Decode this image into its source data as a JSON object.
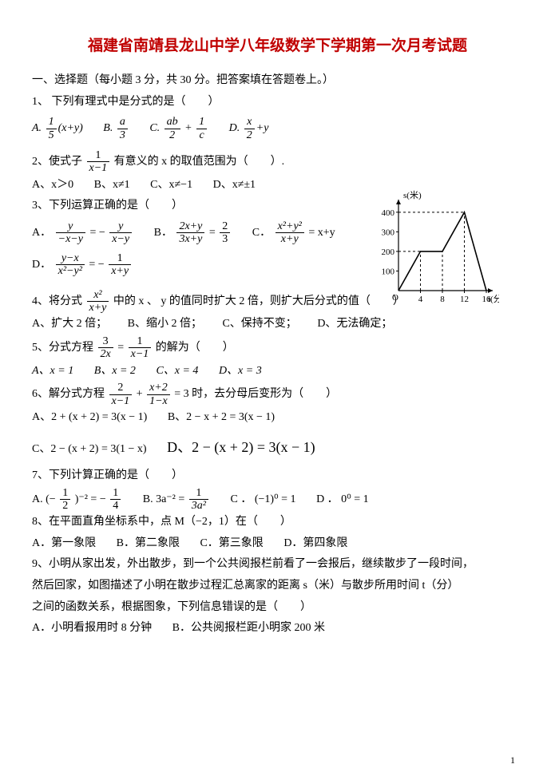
{
  "title": "福建省南靖县龙山中学八年级数学下学期第一次月考试题",
  "title_color": "#c00000",
  "section1": "一、选择题（每小题 3 分，共 30 分。把答案填在答题卷上。）",
  "q1": {
    "stem": "1、 下列有理式中是分式的是（　　）",
    "A": "A.",
    "A_num": "1",
    "A_den": "5",
    "A_tail": "(x+y)",
    "B": "B.",
    "B_num": "a",
    "B_den": "3",
    "C": "C.",
    "C_n1": "ab",
    "C_d1": "2",
    "C_plus": "+",
    "C_n2": "1",
    "C_d2": "c",
    "D": "D.",
    "D_num": "x",
    "D_den": "2",
    "D_tail": "+y"
  },
  "q2": {
    "stem_a": "2、使式子 ",
    "num": "1",
    "den": "x−1",
    "stem_b": " 有意义的 x 的取值范围为（　　）.",
    "A": "A、x＞0",
    "B": "B、x≠1",
    "C": "C、x≠−1",
    "D": "D、x≠±1"
  },
  "q3": {
    "stem": "3、下列运算正确的是（　　）",
    "A": "A．",
    "An1": "y",
    "Ad1": "−x−y",
    "Aeq": "= −",
    "An2": "y",
    "Ad2": "x−y",
    "B": "B．",
    "Bn1": "2x+y",
    "Bd1": "3x+y",
    "Beq": "=",
    "Bn2": "2",
    "Bd2": "3",
    "C": "C．",
    "Cn1": "x²+y²",
    "Cd1": "x+y",
    "Ceq": "= x+y",
    "D": "D．",
    "Dn1": "y−x",
    "Dd1": "x²−y²",
    "Deq": "= −",
    "Dn2": "1",
    "Dd2": "x+y"
  },
  "q4": {
    "stem_a": "4、将分式 ",
    "num": "x²",
    "den": "x+y",
    "stem_b": " 中的 x 、 y 的值同时扩大 2 倍，则扩大后分式的值（　　）",
    "A": "A、扩大 2 倍；",
    "B": "B、缩小 2 倍；",
    "C": "C、保持不变；",
    "D": "D、无法确定；"
  },
  "q5": {
    "stem_a": "5、分式方程 ",
    "n1": "3",
    "d1": "2x",
    "eq": "=",
    "n2": "1",
    "d2": "x−1",
    "stem_b": " 的解为（　　）",
    "A": "A、x = 1",
    "B": "B、x = 2",
    "C": "C、x = 4",
    "D": "D、x = 3"
  },
  "q6": {
    "stem_a": "6、解分式方程 ",
    "n1": "2",
    "d1": "x−1",
    "plus": "+",
    "n2": "x+2",
    "d2": "1−x",
    "stem_b": " = 3 时，去分母后变形为（　　）",
    "A": "A、2 + (x + 2) = 3(x − 1)",
    "B": "B、2 − x + 2 = 3(x − 1)",
    "C": "C、2 − (x + 2) = 3(1 − x)",
    "D": "D、2 − (x + 2) = 3(x − 1)"
  },
  "q7": {
    "stem": "7、下列计算正确的是（　　）",
    "A": "A. ",
    "An": "1",
    "Ad": "2",
    "Aexp": "(−",
    "Aexp2": ")⁻² = −",
    "An2": "1",
    "Ad2": "4",
    "B": "B.  3a⁻² =",
    "Bn": "1",
    "Bd": "3a²",
    "C": "C ． (−1)⁰ = 1",
    "D": "D ． 0⁰ = 1"
  },
  "q8": {
    "stem": "8、在平面直角坐标系中，点 M（−2，1）在（　　）",
    "A": "A．第一象限",
    "B": "B．第二象限",
    "C": "C．第三象限",
    "D": "D．第四象限"
  },
  "q9": {
    "l1": "9、小明从家出发，外出散步，到一个公共阅报栏前看了一会报后，继续散步了一段时间，",
    "l2": "然后回家，如图描述了小明在散步过程汇总离家的距离 s（米）与散步所用时间 t（分）",
    "l3": "之间的函数关系，根据图象，下列信息错误的是（　　）",
    "A": "A．小明看报用时 8 分钟",
    "B": "B．公共阅报栏距小明家 200 米"
  },
  "chart": {
    "background": "#ffffff",
    "axis_color": "#000000",
    "line_color": "#000000",
    "ylabel": "s(米)",
    "xlabel": "t(分)",
    "yticks": [
      100,
      200,
      300,
      400
    ],
    "xticks": [
      "4",
      "8",
      "12",
      "16"
    ],
    "points": [
      [
        0,
        0
      ],
      [
        4,
        200
      ],
      [
        8,
        200
      ],
      [
        12,
        400
      ],
      [
        16,
        0
      ]
    ],
    "xlim": [
      0,
      16
    ],
    "ylim": [
      0,
      440
    ],
    "width": 150,
    "height": 140,
    "font_size": 11
  },
  "page_number": "1"
}
